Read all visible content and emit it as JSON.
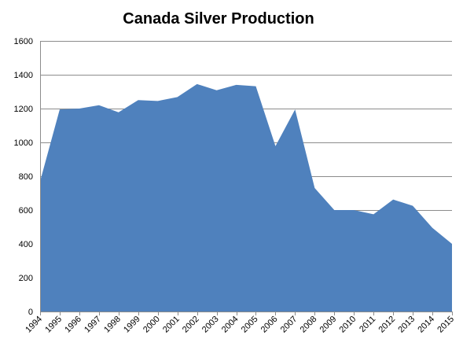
{
  "chart_data": {
    "type": "area",
    "title": "Canada Silver Production",
    "xlabel": "",
    "ylabel": "",
    "ylim": [
      0,
      1600
    ],
    "yticks": [
      0,
      200,
      400,
      600,
      800,
      1000,
      1200,
      1400,
      1600
    ],
    "grid": true,
    "legend": "none",
    "categories": [
      "1994",
      "1995",
      "1996",
      "1997",
      "1998",
      "1999",
      "2000",
      "2001",
      "2002",
      "2003",
      "2004",
      "2005",
      "2006",
      "2007",
      "2008",
      "2009",
      "2010",
      "2011",
      "2012",
      "2013",
      "2014",
      "2015"
    ],
    "series": [
      {
        "values": [
          770,
          1195,
          1200,
          1220,
          1178,
          1250,
          1245,
          1268,
          1345,
          1308,
          1340,
          1332,
          978,
          1195,
          730,
          600,
          600,
          575,
          662,
          625,
          495,
          400
        ],
        "color": "#4f81bd"
      }
    ]
  }
}
